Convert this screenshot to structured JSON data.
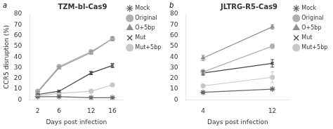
{
  "chart_data": [
    {
      "type": "line",
      "title": "TZM-bl-Cas9",
      "annotations": [
        "a"
      ],
      "x": [
        2,
        6,
        12,
        16
      ],
      "series": [
        {
          "name": "Mock",
          "color": "#666666",
          "marker": "star",
          "values": [
            3,
            3,
            2,
            2
          ],
          "yerr": [
            0.4,
            0.4,
            0.4,
            0.4
          ]
        },
        {
          "name": "Original",
          "color": "#b0b0b0",
          "marker": "circle",
          "values": [
            8,
            31,
            45,
            57
          ],
          "yerr": [
            0.8,
            1.2,
            1.5,
            1.8
          ]
        },
        {
          "name": "O+5bp",
          "color": "#909090",
          "marker": "triangle",
          "values": [
            7,
            30,
            44,
            57
          ],
          "yerr": [
            0.8,
            1.2,
            1.5,
            1.8
          ]
        },
        {
          "name": "Mut",
          "color": "#444444",
          "marker": "cross",
          "values": [
            5,
            8,
            25,
            32
          ],
          "yerr": [
            0.4,
            0.8,
            1.5,
            2.0
          ]
        },
        {
          "name": "Mut+5bp",
          "color": "#c8c8c8",
          "marker": "circle",
          "values": [
            4,
            6,
            8,
            14
          ],
          "yerr": [
            0.4,
            0.4,
            0.5,
            0.8
          ]
        }
      ],
      "xlim": [
        0.5,
        18
      ],
      "xticks": [
        2,
        6,
        12,
        16
      ],
      "ylim": [
        0,
        80
      ],
      "yticks": [
        0,
        10,
        20,
        30,
        40,
        50,
        60,
        70,
        80
      ],
      "xlabel": "Days post infection",
      "ylabel": "CCR5 disruption (%)",
      "legend": "right",
      "grid": false
    },
    {
      "type": "line",
      "title": "JLTRG-R5-Cas9",
      "annotations": [
        "b"
      ],
      "x": [
        4,
        12
      ],
      "series": [
        {
          "name": "Mock",
          "color": "#666666",
          "marker": "star",
          "values": [
            7,
            10
          ],
          "yerr": [
            0.5,
            0.5
          ]
        },
        {
          "name": "Original",
          "color": "#b0b0b0",
          "marker": "circle",
          "values": [
            26,
            50
          ],
          "yerr": [
            2.5,
            2.0
          ]
        },
        {
          "name": "O+5bp",
          "color": "#909090",
          "marker": "triangle",
          "values": [
            39,
            68
          ],
          "yerr": [
            2.5,
            2.0
          ]
        },
        {
          "name": "Mut",
          "color": "#444444",
          "marker": "cross",
          "values": [
            25,
            34
          ],
          "yerr": [
            2.0,
            3.5
          ]
        },
        {
          "name": "Mut+5bp",
          "color": "#c8c8c8",
          "marker": "circle",
          "values": [
            13,
            21
          ],
          "yerr": [
            1.0,
            5.0
          ]
        }
      ],
      "xlim": [
        2,
        14
      ],
      "xticks": [
        4,
        12
      ],
      "ylim": [
        0,
        80
      ],
      "yticks": [
        0,
        10,
        20,
        30,
        40,
        50,
        60,
        70,
        80
      ],
      "xlabel": "Days post infection",
      "legend": "right",
      "grid": false
    }
  ]
}
